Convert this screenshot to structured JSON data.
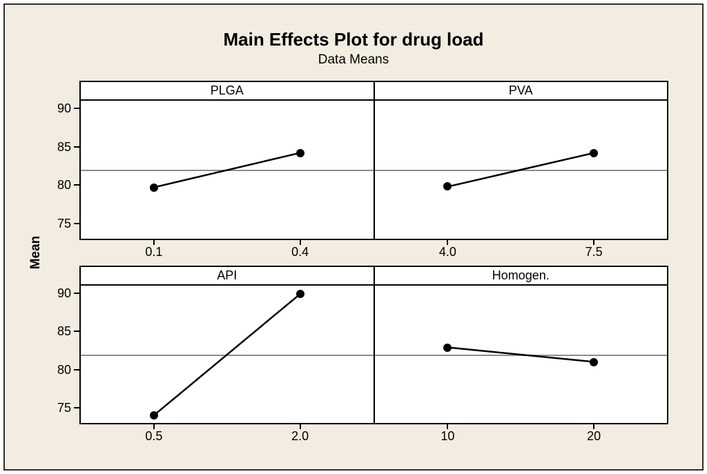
{
  "colors": {
    "background": "#F2ECE1",
    "panel_background": "#FFFFFF",
    "frame": "#2E2E2E",
    "data_line": "#000000",
    "reference_line": "#8C8C8C"
  },
  "chart_data": {
    "type": "line",
    "title": "Main Effects Plot for drug load",
    "subtitle": "Data Means",
    "ylabel": "Mean",
    "ylim": [
      73,
      91
    ],
    "yticks": [
      90,
      85,
      80,
      75
    ],
    "reference_mean": 82.0,
    "grid": false,
    "legend": false,
    "point_x_positions_pct": [
      25,
      75
    ],
    "panels": [
      {
        "label": "PLGA",
        "categories": [
          "0.1",
          "0.4"
        ],
        "values": [
          79.7,
          84.2
        ],
        "y_axis": true
      },
      {
        "label": "PVA",
        "categories": [
          "4.0",
          "7.5"
        ],
        "values": [
          79.8,
          84.2
        ],
        "y_axis": false
      },
      {
        "label": "API",
        "categories": [
          "0.5",
          "2.0"
        ],
        "values": [
          74.0,
          89.9
        ],
        "y_axis": true
      },
      {
        "label": "Homogen.",
        "categories": [
          "10",
          "20"
        ],
        "values": [
          82.9,
          81.0
        ],
        "y_axis": false
      }
    ]
  }
}
